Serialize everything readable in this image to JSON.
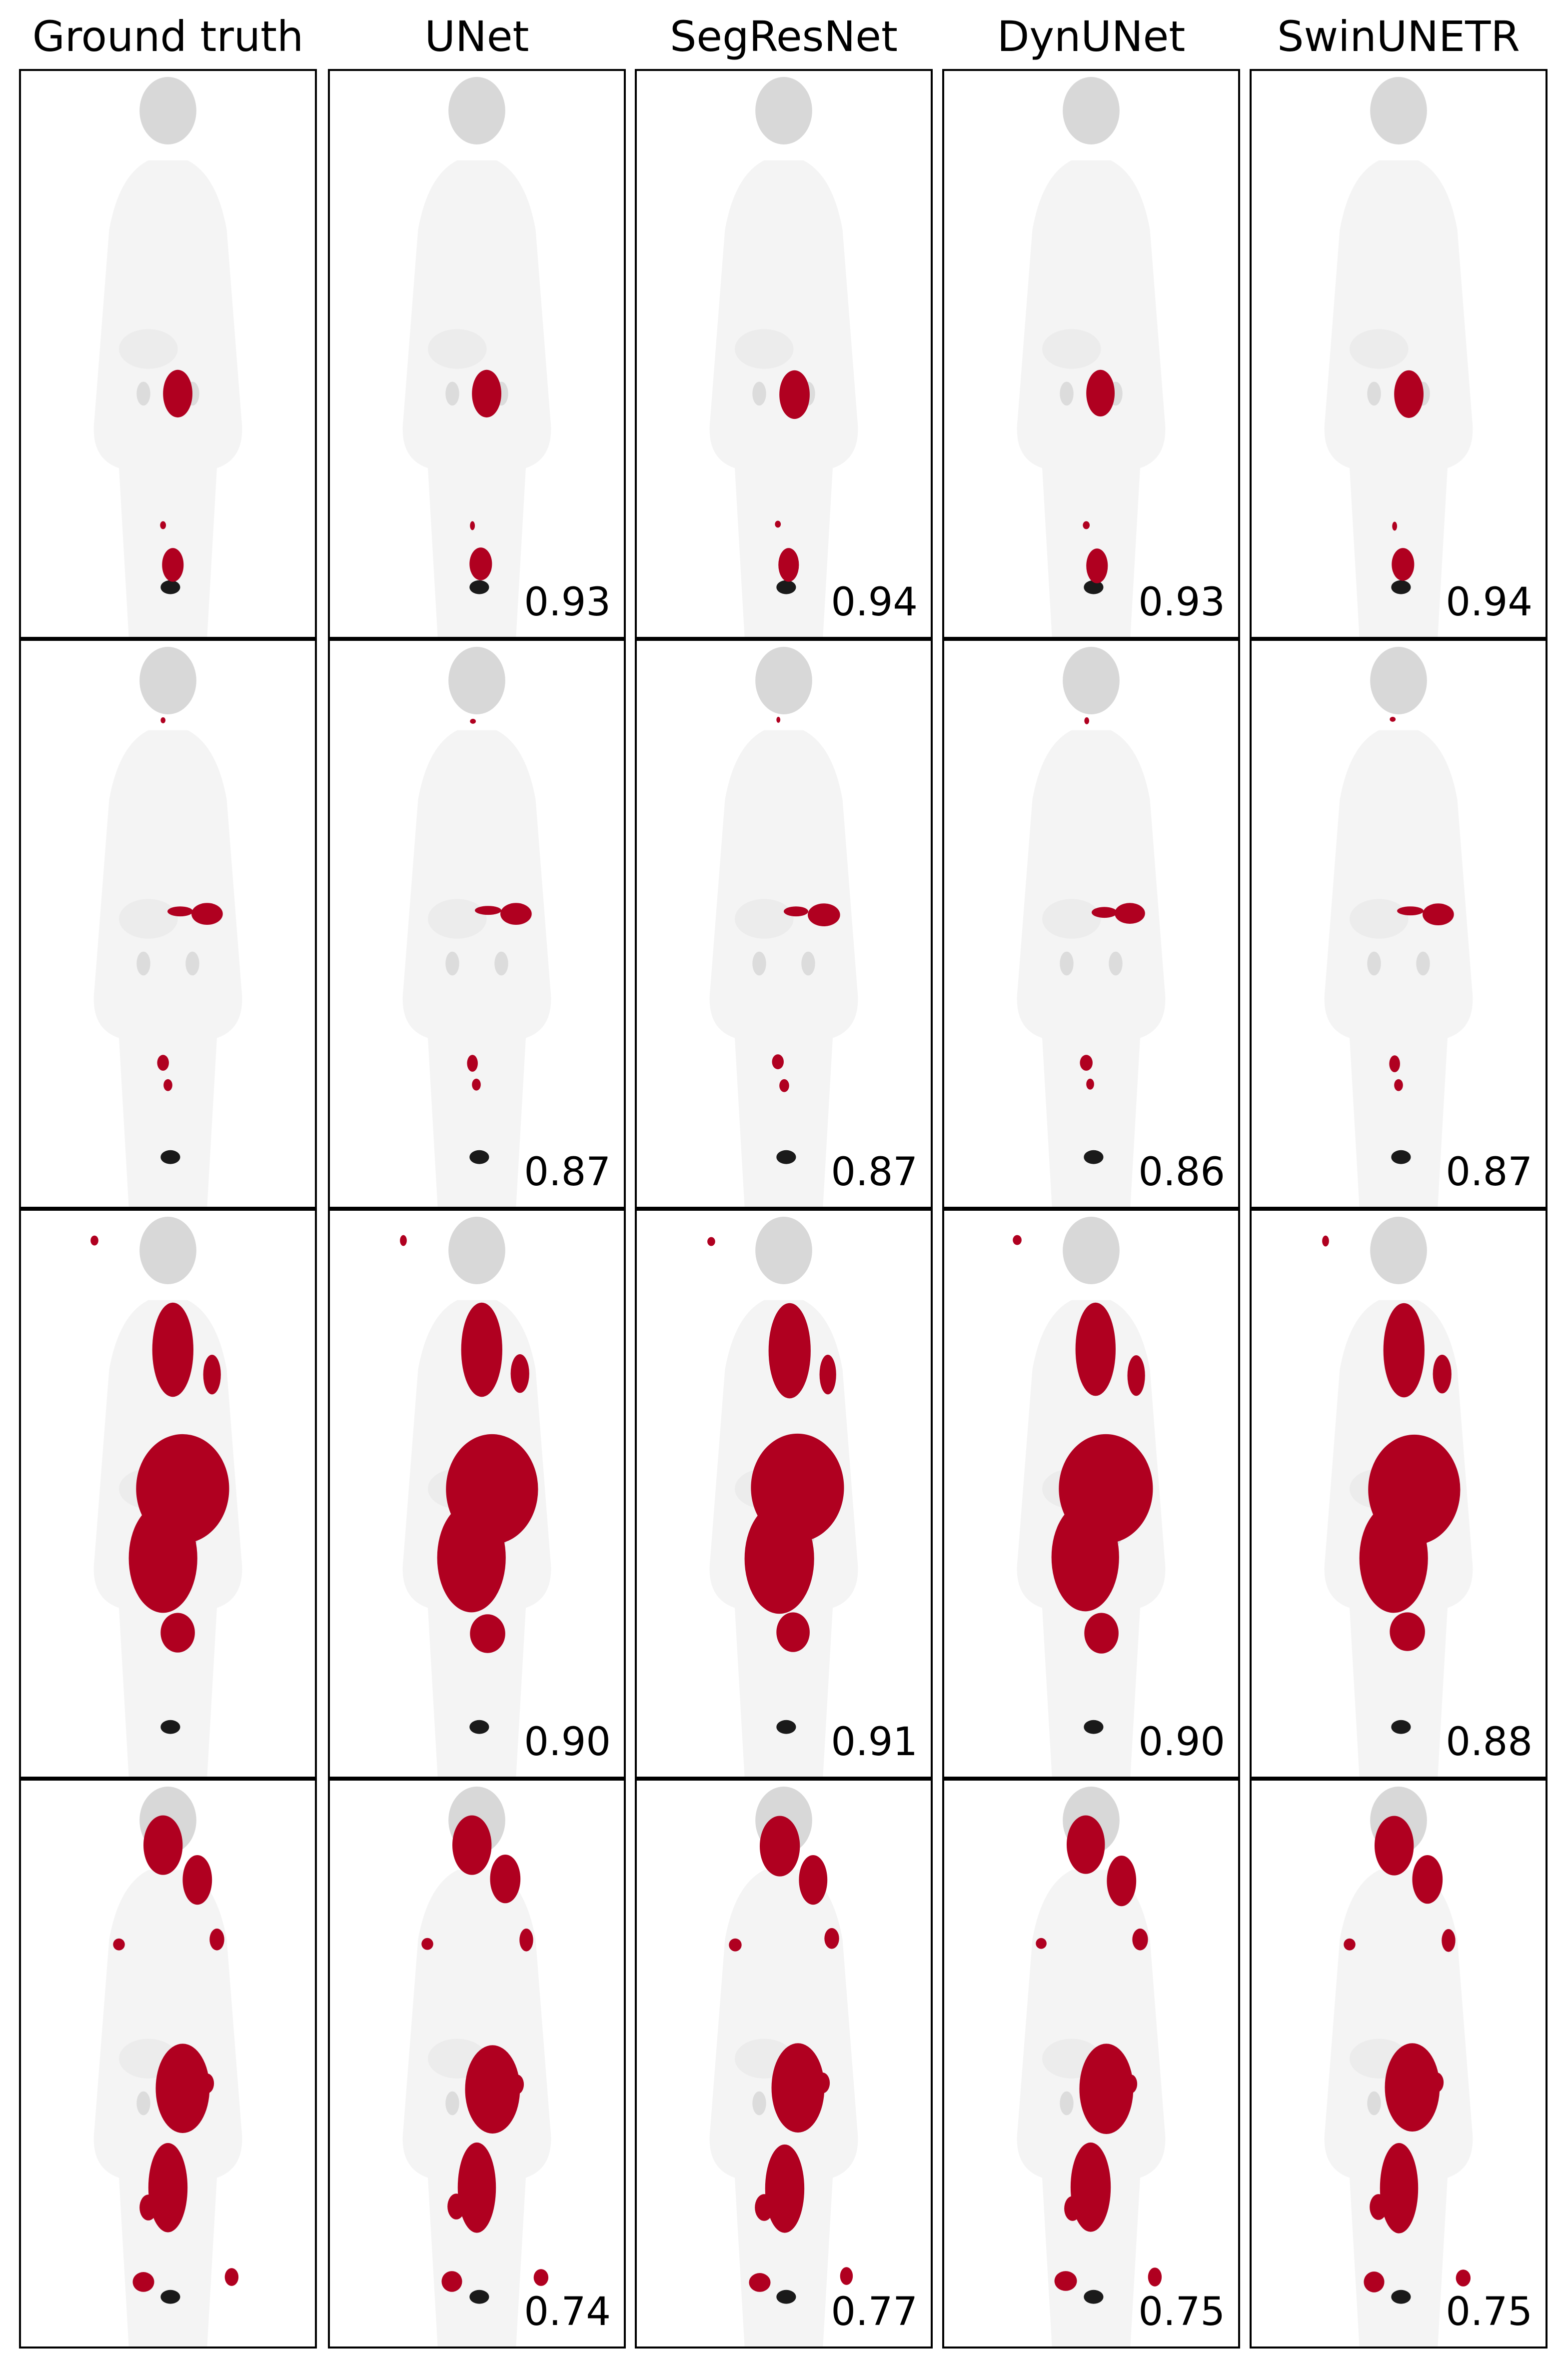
{
  "columns": [
    "Ground truth",
    "UNet",
    "SegResNet",
    "DynUNet",
    "SwinUNETR"
  ],
  "rows": [
    {
      "dice": [
        "",
        "0.93",
        "0.94",
        "0.93",
        "0.94"
      ]
    },
    {
      "dice": [
        "",
        "0.87",
        "0.87",
        "0.86",
        "0.87"
      ]
    },
    {
      "dice": [
        "",
        "0.90",
        "0.91",
        "0.90",
        "0.88"
      ]
    },
    {
      "dice": [
        "",
        "0.74",
        "0.77",
        "0.75",
        "0.75"
      ]
    }
  ],
  "colors": {
    "lesion": "#b00020",
    "tracer_light": "#d8d8d8",
    "tracer_dark": "#1a1a1a",
    "body": "#f4f4f4"
  }
}
